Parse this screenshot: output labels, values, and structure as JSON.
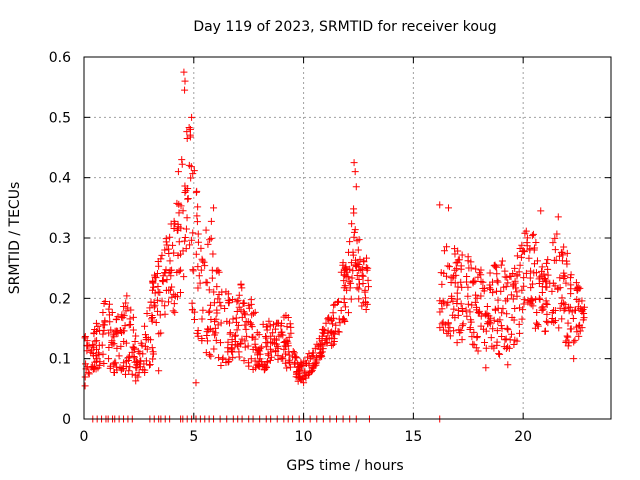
{
  "chart_data": {
    "type": "scatter",
    "title": "Day 119 of 2023, SRMTID for receiver koug",
    "xlabel": "GPS time / hours",
    "ylabel": "SRMTID / TECUs",
    "xlim": [
      0,
      24
    ],
    "ylim": [
      0,
      0.6
    ],
    "xticks": [
      0,
      5,
      10,
      15,
      20
    ],
    "yticks": [
      0,
      0.1,
      0.2,
      0.3,
      0.4,
      0.5,
      0.6
    ],
    "xtick_labels": [
      "0",
      "5",
      "10",
      "15",
      "20"
    ],
    "ytick_labels": [
      "0",
      "0.1",
      "0.2",
      "0.3",
      "0.4",
      "0.5",
      "0.6"
    ],
    "grid": true,
    "marker": "+",
    "color": "#ff0000",
    "series": [
      {
        "name": "SRMTID",
        "envelope": [
          {
            "x": 0.0,
            "lo": 0.06,
            "hi": 0.14
          },
          {
            "x": 0.5,
            "lo": 0.08,
            "hi": 0.16
          },
          {
            "x": 1.0,
            "lo": 0.09,
            "hi": 0.2
          },
          {
            "x": 1.5,
            "lo": 0.07,
            "hi": 0.17
          },
          {
            "x": 2.0,
            "lo": 0.07,
            "hi": 0.21
          },
          {
            "x": 2.5,
            "lo": 0.06,
            "hi": 0.13
          },
          {
            "x": 3.2,
            "lo": 0.1,
            "hi": 0.26
          },
          {
            "x": 3.7,
            "lo": 0.15,
            "hi": 0.3
          },
          {
            "x": 4.2,
            "lo": 0.18,
            "hi": 0.35
          },
          {
            "x": 4.5,
            "lo": 0.22,
            "hi": 0.45
          },
          {
            "x": 4.7,
            "lo": 0.25,
            "hi": 0.52
          },
          {
            "x": 5.0,
            "lo": 0.15,
            "hi": 0.45
          },
          {
            "x": 5.3,
            "lo": 0.12,
            "hi": 0.3
          },
          {
            "x": 5.8,
            "lo": 0.1,
            "hi": 0.33
          },
          {
            "x": 6.3,
            "lo": 0.08,
            "hi": 0.22
          },
          {
            "x": 6.8,
            "lo": 0.09,
            "hi": 0.2
          },
          {
            "x": 7.3,
            "lo": 0.09,
            "hi": 0.24
          },
          {
            "x": 7.8,
            "lo": 0.08,
            "hi": 0.18
          },
          {
            "x": 8.3,
            "lo": 0.08,
            "hi": 0.16
          },
          {
            "x": 8.8,
            "lo": 0.1,
            "hi": 0.17
          },
          {
            "x": 9.3,
            "lo": 0.08,
            "hi": 0.18
          },
          {
            "x": 9.8,
            "lo": 0.06,
            "hi": 0.09
          },
          {
            "x": 10.2,
            "lo": 0.07,
            "hi": 0.11
          },
          {
            "x": 10.6,
            "lo": 0.09,
            "hi": 0.13
          },
          {
            "x": 11.0,
            "lo": 0.11,
            "hi": 0.16
          },
          {
            "x": 11.5,
            "lo": 0.13,
            "hi": 0.2
          },
          {
            "x": 12.0,
            "lo": 0.16,
            "hi": 0.3
          },
          {
            "x": 12.3,
            "lo": 0.22,
            "hi": 0.36
          },
          {
            "x": 12.7,
            "lo": 0.18,
            "hi": 0.26
          },
          {
            "x": 13.0,
            "lo": 0.18,
            "hi": 0.29
          },
          {
            "x": 16.2,
            "lo": 0.15,
            "hi": 0.27
          },
          {
            "x": 16.6,
            "lo": 0.14,
            "hi": 0.3
          },
          {
            "x": 17.0,
            "lo": 0.12,
            "hi": 0.28
          },
          {
            "x": 17.5,
            "lo": 0.13,
            "hi": 0.27
          },
          {
            "x": 18.0,
            "lo": 0.11,
            "hi": 0.26
          },
          {
            "x": 18.5,
            "lo": 0.12,
            "hi": 0.25
          },
          {
            "x": 19.0,
            "lo": 0.1,
            "hi": 0.27
          },
          {
            "x": 19.5,
            "lo": 0.12,
            "hi": 0.25
          },
          {
            "x": 20.0,
            "lo": 0.14,
            "hi": 0.31
          },
          {
            "x": 20.5,
            "lo": 0.15,
            "hi": 0.32
          },
          {
            "x": 21.0,
            "lo": 0.14,
            "hi": 0.26
          },
          {
            "x": 21.5,
            "lo": 0.16,
            "hi": 0.31
          },
          {
            "x": 22.0,
            "lo": 0.12,
            "hi": 0.28
          },
          {
            "x": 22.5,
            "lo": 0.13,
            "hi": 0.22
          },
          {
            "x": 22.8,
            "lo": 0.15,
            "hi": 0.21
          }
        ],
        "outliers": [
          {
            "x": 4.55,
            "y": 0.575
          },
          {
            "x": 4.6,
            "y": 0.56
          },
          {
            "x": 4.58,
            "y": 0.545
          },
          {
            "x": 4.9,
            "y": 0.5
          },
          {
            "x": 4.85,
            "y": 0.48
          },
          {
            "x": 4.7,
            "y": 0.465
          },
          {
            "x": 4.3,
            "y": 0.41
          },
          {
            "x": 4.45,
            "y": 0.43
          },
          {
            "x": 12.3,
            "y": 0.425
          },
          {
            "x": 12.35,
            "y": 0.41
          },
          {
            "x": 12.4,
            "y": 0.385
          },
          {
            "x": 16.2,
            "y": 0.355
          },
          {
            "x": 16.6,
            "y": 0.35
          },
          {
            "x": 20.8,
            "y": 0.345
          },
          {
            "x": 21.6,
            "y": 0.335
          },
          {
            "x": 5.9,
            "y": 0.35
          },
          {
            "x": 0.05,
            "y": 0.055
          },
          {
            "x": 5.1,
            "y": 0.06
          },
          {
            "x": 3.4,
            "y": 0.08
          },
          {
            "x": 18.3,
            "y": 0.085
          },
          {
            "x": 19.3,
            "y": 0.09
          },
          {
            "x": 10.0,
            "y": 0.06
          },
          {
            "x": 22.3,
            "y": 0.1
          }
        ],
        "zero_x": [
          0.4,
          0.6,
          0.8,
          1.0,
          1.1,
          1.3,
          1.4,
          1.6,
          1.8,
          2.0,
          2.2,
          3.0,
          3.2,
          3.4,
          3.5,
          3.7,
          3.9,
          4.4,
          4.5,
          4.7,
          4.9,
          5.1,
          5.3,
          5.5,
          5.7,
          5.9,
          6.2,
          6.5,
          6.8,
          7.0,
          7.2,
          7.5,
          7.7,
          8.0,
          8.3,
          8.5,
          8.8,
          9.1,
          9.3,
          9.5,
          9.8,
          10.0,
          10.3,
          10.6,
          10.9,
          11.2,
          11.5,
          11.8,
          12.1,
          12.4,
          13.0,
          16.2
        ]
      }
    ]
  }
}
